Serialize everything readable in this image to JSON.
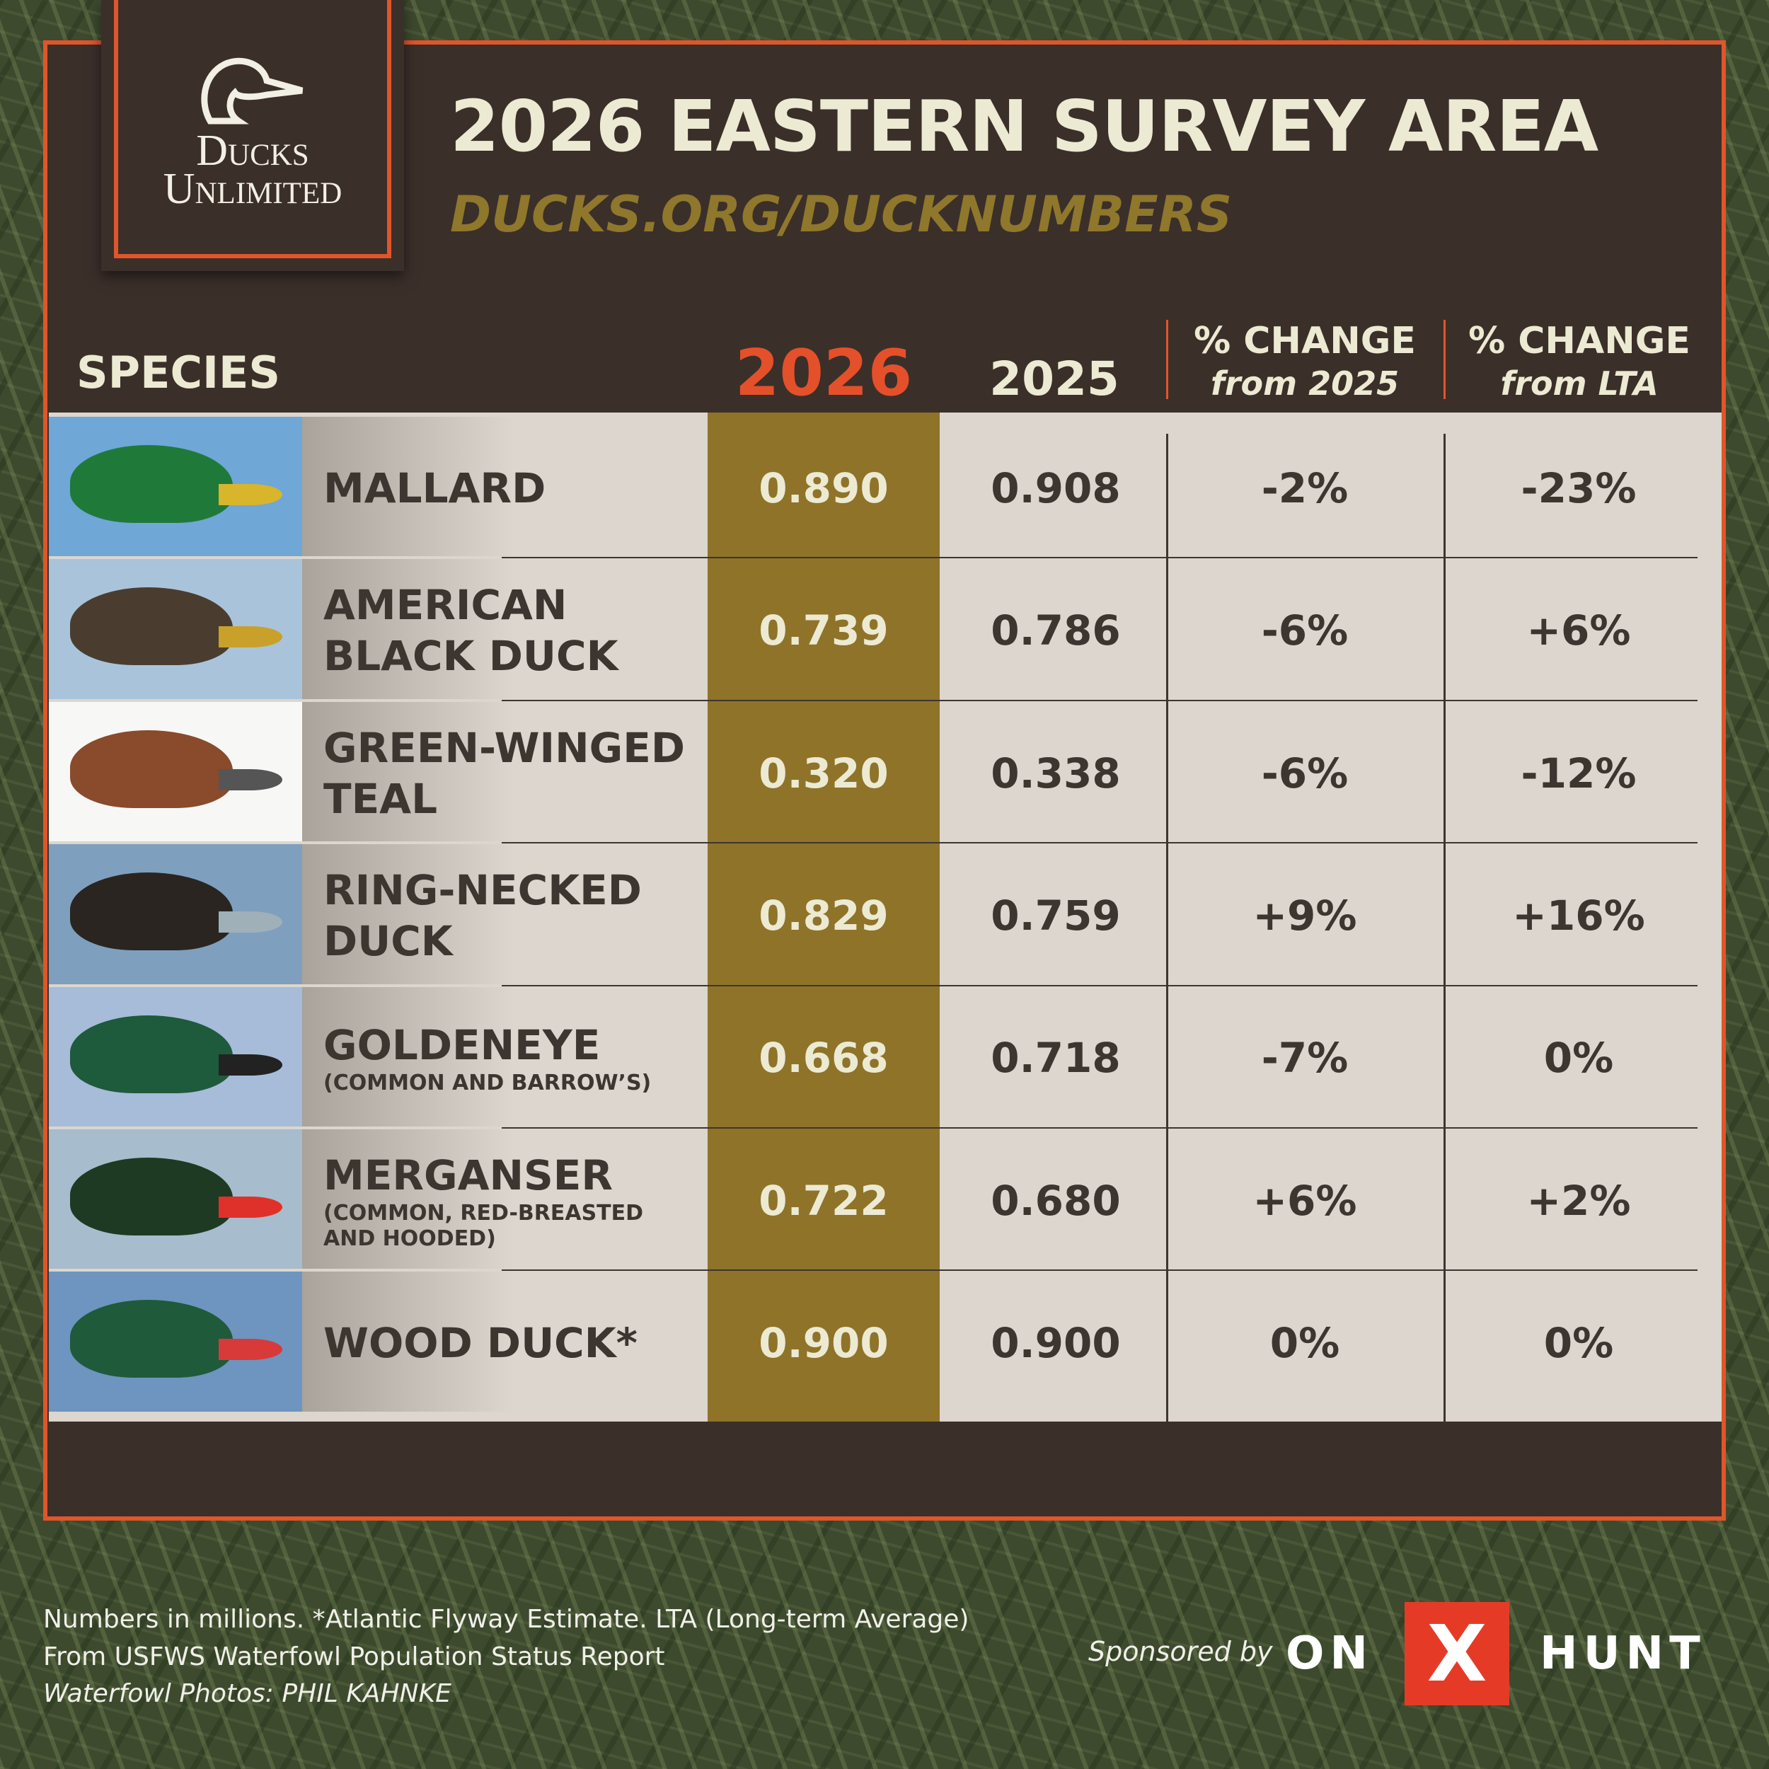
{
  "logo": {
    "line1": "Ducks",
    "line2": "Unlimited"
  },
  "header": {
    "title": "2026 EASTERN SURVEY AREA",
    "url": "DUCKS.ORG/DUCKNUMBERS"
  },
  "table": {
    "columns": {
      "species": "SPECIES",
      "year_current": "2026",
      "year_previous": "2025",
      "change_previous": [
        "% CHANGE",
        "from 2025"
      ],
      "change_lta": [
        "% CHANGE",
        "from LTA"
      ]
    },
    "rows": [
      {
        "name_lines": [
          "MALLARD"
        ],
        "note_lines": [],
        "current": "0.890",
        "previous": "0.908",
        "change_previous": "-2%",
        "change_lta": "-23%"
      },
      {
        "name_lines": [
          "AMERICAN",
          "BLACK DUCK"
        ],
        "note_lines": [],
        "current": "0.739",
        "previous": "0.786",
        "change_previous": "-6%",
        "change_lta": "+6%"
      },
      {
        "name_lines": [
          "GREEN-WINGED",
          "TEAL"
        ],
        "note_lines": [],
        "current": "0.320",
        "previous": "0.338",
        "change_previous": "-6%",
        "change_lta": "-12%"
      },
      {
        "name_lines": [
          "RING-NECKED",
          "DUCK"
        ],
        "note_lines": [],
        "current": "0.829",
        "previous": "0.759",
        "change_previous": "+9%",
        "change_lta": "+16%"
      },
      {
        "name_lines": [
          "GOLDENEYE"
        ],
        "note_lines": [
          "(COMMON AND BARROW’S)"
        ],
        "current": "0.668",
        "previous": "0.718",
        "change_previous": "-7%",
        "change_lta": "0%"
      },
      {
        "name_lines": [
          "MERGANSER"
        ],
        "note_lines": [
          "(COMMON, RED-BREASTED",
          "AND HOODED)"
        ],
        "current": "0.722",
        "previous": "0.680",
        "change_previous": "+6%",
        "change_lta": "+2%"
      },
      {
        "name_lines": [
          "WOOD DUCK*"
        ],
        "note_lines": [],
        "current": "0.900",
        "previous": "0.900",
        "change_previous": "0%",
        "change_lta": "0%"
      }
    ]
  },
  "footer": {
    "notes": [
      "Numbers in millions.  *Atlantic Flyway Estimate. LTA (Long-term Average)",
      "From USFWS Waterfowl Population Status Report",
      "Waterfowl Photos: PHIL KAHNKE"
    ],
    "sponsor_label": "Sponsored by",
    "sponsor_left": "ON",
    "sponsor_mark": "X",
    "sponsor_right": "HUNT"
  }
}
